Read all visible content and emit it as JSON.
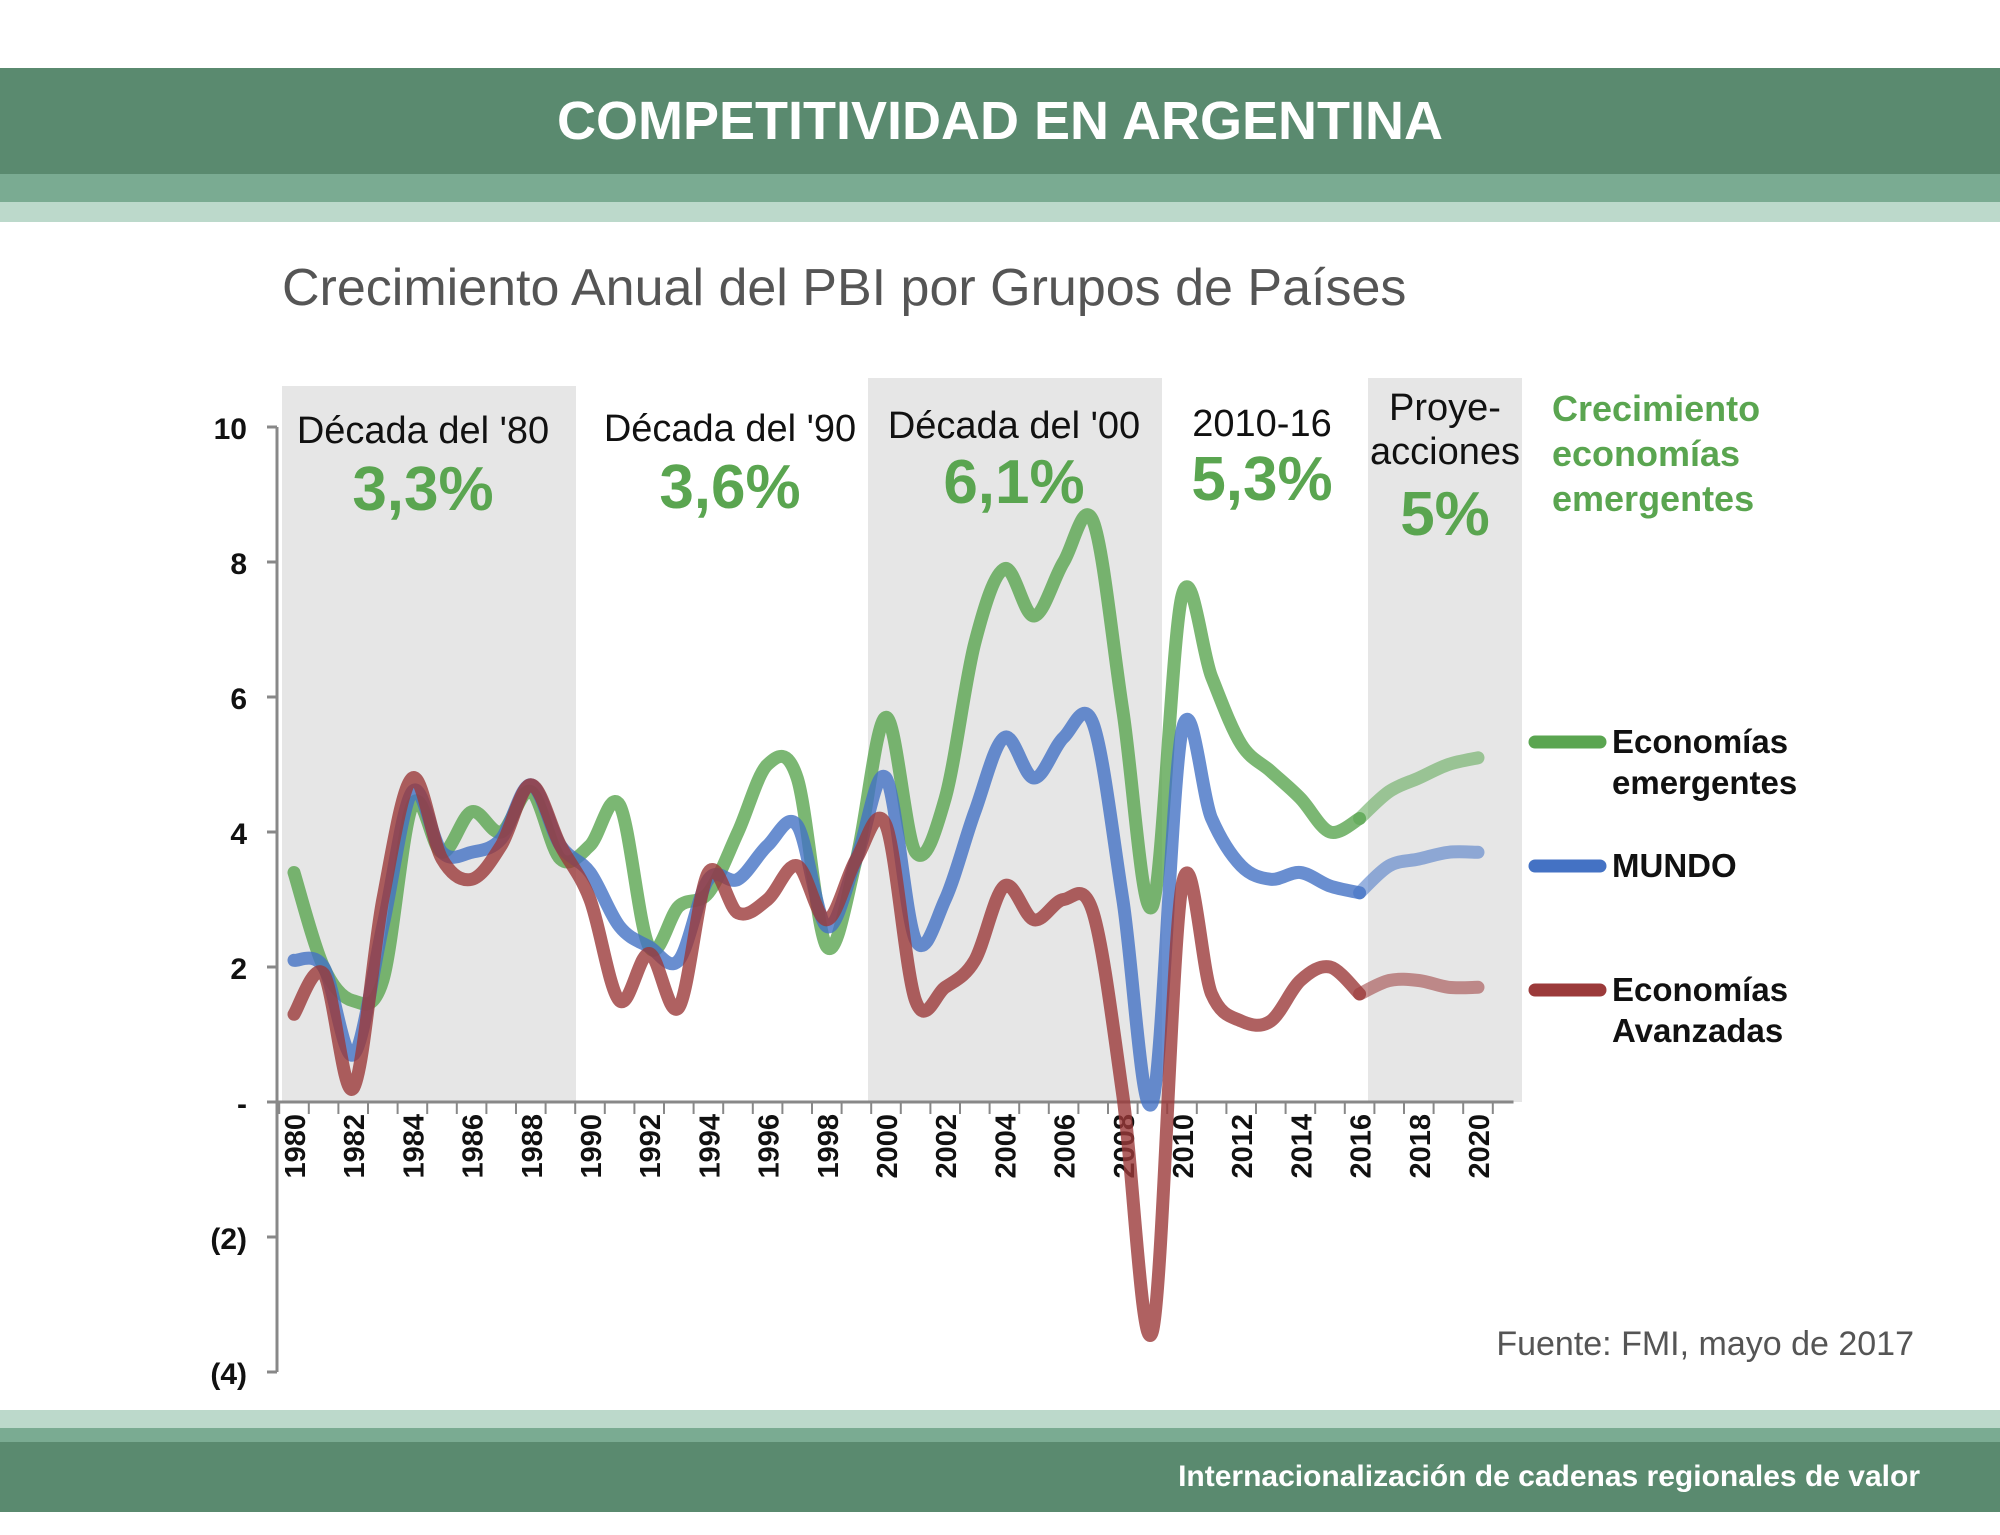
{
  "header": {
    "title": "COMPETITIVIDAD EN ARGENTINA"
  },
  "footer": {
    "text": "Internacionalización de cadenas regionales de valor"
  },
  "source": "Fuente: FMI, mayo de 2017",
  "colors": {
    "header_dark": "#5a8a6f",
    "header_mid": "#7aab92",
    "header_light": "#bcd9cb",
    "period_shade": "#e6e6e6",
    "emergentes": "#5aa550",
    "mundo": "#4472c4",
    "avanzadas": "#9b3a3a",
    "label_green": "#5aa550"
  },
  "chart_data": {
    "type": "line",
    "title": "Crecimiento Anual del PBI por Grupos de Países",
    "xlabel": "",
    "ylabel": "",
    "ylim": [
      -4,
      10
    ],
    "yticks": [
      -4,
      -2,
      0,
      2,
      4,
      6,
      8,
      10
    ],
    "ytick_labels": [
      "(4)",
      "(2)",
      "-",
      "2",
      "4",
      "6",
      "8",
      "10"
    ],
    "xticks": [
      "1980",
      "1982",
      "1984",
      "1986",
      "1988",
      "1990",
      "1992",
      "1994",
      "1996",
      "1998",
      "2000",
      "2002",
      "2004",
      "2006",
      "2008",
      "2010",
      "2012",
      "2014",
      "2016",
      "2018",
      "2020"
    ],
    "x": [
      1980,
      1981,
      1982,
      1983,
      1984,
      1985,
      1986,
      1987,
      1988,
      1989,
      1990,
      1991,
      1992,
      1993,
      1994,
      1995,
      1996,
      1997,
      1998,
      1999,
      2000,
      2001,
      2002,
      2003,
      2004,
      2005,
      2006,
      2007,
      2008,
      2009,
      2010,
      2011,
      2012,
      2013,
      2014,
      2015,
      2016,
      2017,
      2018,
      2019,
      2020
    ],
    "projection_start": 2016,
    "series": [
      {
        "name": "Economías emergentes",
        "color": "#5aa550",
        "values": [
          3.4,
          2.0,
          1.5,
          1.8,
          4.4,
          3.7,
          4.3,
          4.0,
          4.6,
          3.6,
          3.8,
          4.4,
          2.3,
          2.9,
          3.1,
          4.0,
          5.0,
          4.8,
          2.3,
          3.6,
          5.7,
          3.7,
          4.5,
          6.8,
          7.9,
          7.2,
          8.0,
          8.6,
          5.8,
          2.9,
          7.5,
          6.3,
          5.3,
          4.9,
          4.5,
          4.0,
          4.2,
          4.6,
          4.8,
          5.0,
          5.1
        ]
      },
      {
        "name": "MUNDO",
        "color": "#4472c4",
        "values": [
          2.1,
          2.0,
          0.7,
          2.6,
          4.6,
          3.7,
          3.7,
          3.9,
          4.7,
          3.8,
          3.4,
          2.6,
          2.3,
          2.1,
          3.3,
          3.3,
          3.8,
          4.1,
          2.6,
          3.6,
          4.8,
          2.4,
          3.0,
          4.3,
          5.4,
          4.8,
          5.4,
          5.6,
          3.0,
          0.0,
          5.5,
          4.2,
          3.5,
          3.3,
          3.4,
          3.2,
          3.1,
          3.5,
          3.6,
          3.7,
          3.7
        ]
      },
      {
        "name": "Economías Avanzadas",
        "color": "#9b3a3a",
        "values": [
          1.3,
          1.9,
          0.2,
          3.0,
          4.8,
          3.6,
          3.3,
          3.8,
          4.7,
          3.8,
          3.0,
          1.5,
          2.2,
          1.4,
          3.4,
          2.8,
          3.0,
          3.5,
          2.7,
          3.6,
          4.1,
          1.5,
          1.7,
          2.1,
          3.2,
          2.7,
          3.0,
          2.8,
          0.1,
          -3.4,
          3.2,
          1.6,
          1.2,
          1.2,
          1.8,
          2.0,
          1.6,
          1.8,
          1.8,
          1.7,
          1.7
        ]
      }
    ],
    "periods": [
      {
        "label": "Década del '80",
        "value": "3,3%",
        "shaded": true
      },
      {
        "label": "Década del '90",
        "value": "3,6%",
        "shaded": false
      },
      {
        "label": "Década del '00",
        "value": "6,1%",
        "shaded": true
      },
      {
        "label": "2010-16",
        "value": "5,3%",
        "shaded": false
      },
      {
        "label": "Proye-\nacciones",
        "value": "5%",
        "shaded": true
      }
    ],
    "periods_caption": "Crecimiento\neconomías\nemergentes",
    "legend": [
      {
        "label": "Economías\nemergentes"
      },
      {
        "label": "MUNDO"
      },
      {
        "label": "Economías\nAvanzadas"
      }
    ],
    "legend_position": "right",
    "grid": false
  }
}
